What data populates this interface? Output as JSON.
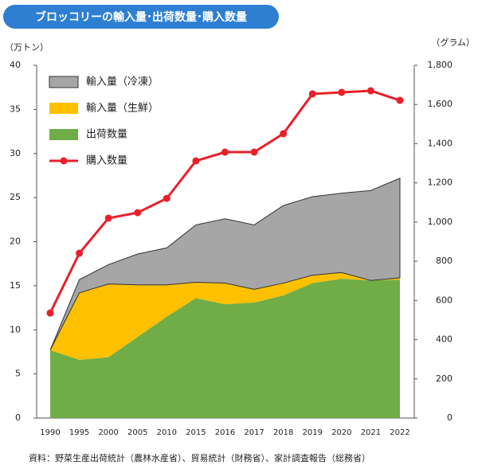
{
  "chart_data": {
    "type": "stacked-area-line",
    "title": "ブロッコリーの輸入量･出荷数量･購入数量",
    "y_label": "（万トン）",
    "y2_label": "（グラム）",
    "source": "資料：野菜生産出荷統計（農林水産省）、貿易統計（財務省）、家計調査報告（総務省）",
    "categories": [
      "1990",
      "1995",
      "2000",
      "2005",
      "2010",
      "2015",
      "2016",
      "2017",
      "2018",
      "2019",
      "2020",
      "2021",
      "2022"
    ],
    "series": [
      {
        "name": "出荷数量",
        "color": "#70ad47",
        "kind": "area",
        "values": [
          7.7,
          6.6,
          6.9,
          9.2,
          11.5,
          13.6,
          12.9,
          13.1,
          13.9,
          15.3,
          15.8,
          15.6,
          15.7
        ]
      },
      {
        "name": "輸入量（生鮮）",
        "color": "#ffc000",
        "kind": "area",
        "values": [
          0,
          7.6,
          8.3,
          5.9,
          3.6,
          1.8,
          2.4,
          1.5,
          1.4,
          0.9,
          0.7,
          0,
          0.2
        ]
      },
      {
        "name": "輸入量（冷凍）",
        "color": "#a6a6a6",
        "kind": "area",
        "values": [
          0,
          1.5,
          2.2,
          3.5,
          4.2,
          6.5,
          7.3,
          7.3,
          8.8,
          8.9,
          9.0,
          10.2,
          11.3
        ]
      },
      {
        "name": "購入数量",
        "color": "#e8202a",
        "kind": "line",
        "axis": "y2",
        "values": [
          536,
          841,
          1020,
          1048,
          1121,
          1312,
          1357,
          1357,
          1451,
          1654,
          1662,
          1670,
          1621
        ]
      }
    ],
    "ylim": [
      0,
      40
    ],
    "yticks": [
      0,
      5,
      10,
      15,
      20,
      25,
      30,
      35,
      40
    ],
    "y2lim": [
      0,
      1800
    ],
    "y2ticks": [
      0,
      200,
      400,
      600,
      800,
      {
        "value": 1000,
        "label": "1,000"
      },
      {
        "value": 1200,
        "label": "1,200"
      },
      {
        "value": 1400,
        "label": "1,400"
      },
      {
        "value": 1600,
        "label": "1,600"
      },
      {
        "value": 1800,
        "label": "1,800"
      }
    ],
    "grid": false
  }
}
